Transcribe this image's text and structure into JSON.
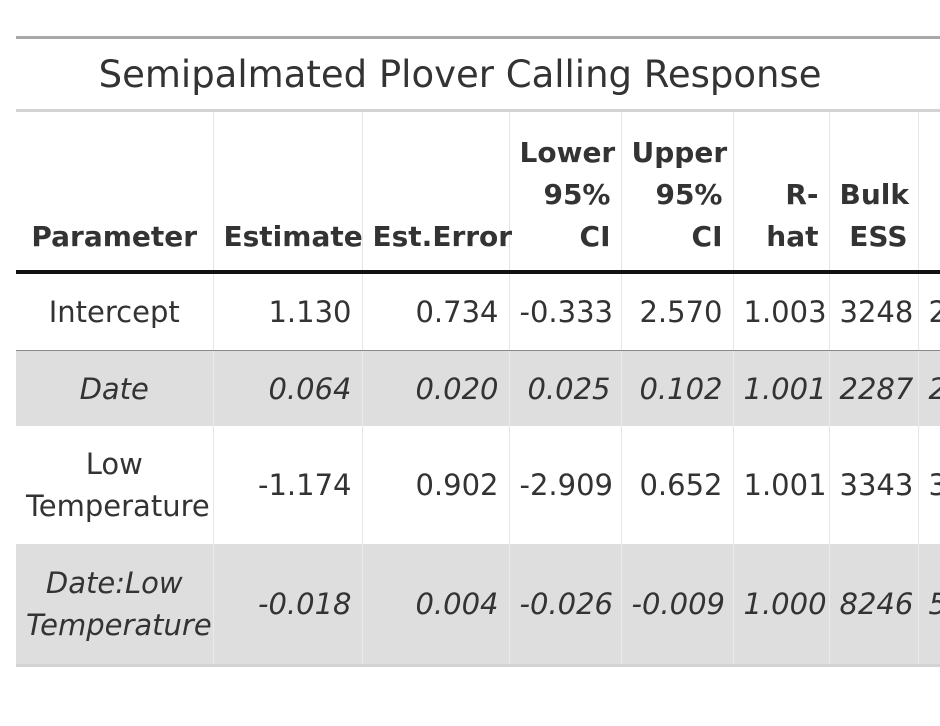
{
  "table": {
    "title": "Semipalmated Plover Calling Response",
    "headers": [
      [
        "Parameter"
      ],
      [
        "Estimate"
      ],
      [
        "Est.Error"
      ],
      [
        "Lower",
        "95%",
        "CI"
      ],
      [
        "Upper",
        "95%",
        "CI"
      ],
      [
        "R-",
        "hat"
      ],
      [
        "Bulk",
        "ESS"
      ],
      [
        ""
      ]
    ],
    "rows": [
      {
        "parameter": [
          "Intercept"
        ],
        "estimate": "1.130",
        "est_error": "0.734",
        "lower_ci": "-0.333",
        "upper_ci": "2.570",
        "rhat": "1.003",
        "bulk_ess": "3248",
        "next_col": "2"
      },
      {
        "parameter": [
          "Date"
        ],
        "estimate": "0.064",
        "est_error": "0.020",
        "lower_ci": "0.025",
        "upper_ci": "0.102",
        "rhat": "1.001",
        "bulk_ess": "2287",
        "next_col": "2"
      },
      {
        "parameter": [
          "Low",
          "Temperature"
        ],
        "estimate": "-1.174",
        "est_error": "0.902",
        "lower_ci": "-2.909",
        "upper_ci": "0.652",
        "rhat": "1.001",
        "bulk_ess": "3343",
        "next_col": "3"
      },
      {
        "parameter": [
          "Date:Low",
          "Temperature"
        ],
        "estimate": "-0.018",
        "est_error": "0.004",
        "lower_ci": "-0.026",
        "upper_ci": "-0.009",
        "rhat": "1.000",
        "bulk_ess": "8246",
        "next_col": "5"
      }
    ]
  }
}
